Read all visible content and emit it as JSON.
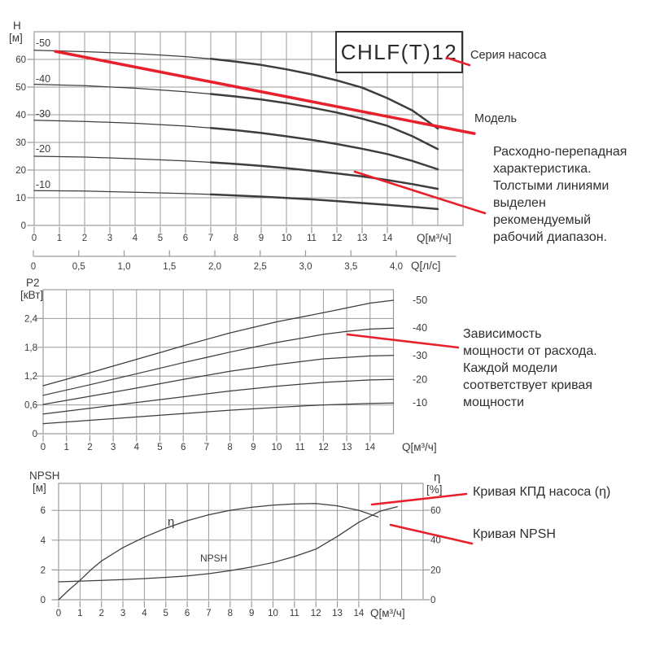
{
  "page": {
    "background": "#ffffff"
  },
  "model_box": {
    "label": "CHLF(T)12"
  },
  "callouts": {
    "series_label": "Серия насоса",
    "model_label": "Модель",
    "flow_note_lines": [
      "Расходно-перепадная",
      "характеристика.",
      "Толстыми линиями",
      "выделен",
      "рекомендуемый",
      "рабочий диапазон."
    ],
    "power_note_lines": [
      "Зависимость",
      "мощности от расхода.",
      "Каждой модели",
      "соответствует кривая",
      "мощности"
    ],
    "efficiency_label": "Кривая КПД насоса (η)",
    "npsh_label": "Кривая NPSH"
  },
  "colors": {
    "accent_red": "#e8202b",
    "curve": "#3d3d3d",
    "grid": "#9b9b9b",
    "text": "#333333"
  },
  "chart_data": [
    {
      "id": "head-vs-flow",
      "type": "line",
      "y_axis": {
        "title": "H",
        "unit": "[м]",
        "tick_labels": [
          "0",
          "10",
          "20",
          "30",
          "40",
          "50",
          "60"
        ],
        "tick_values": [
          0,
          10,
          20,
          30,
          40,
          50,
          60
        ],
        "range": [
          0,
          70
        ]
      },
      "x_axis": {
        "title": "Q[м³/ч]",
        "tick_labels": [
          "0",
          "1",
          "2",
          "3",
          "4",
          "5",
          "6",
          "7",
          "8",
          "9",
          "10",
          "11",
          "12",
          "13",
          "14"
        ],
        "tick_values": [
          0,
          1,
          2,
          3,
          4,
          5,
          6,
          7,
          8,
          9,
          10,
          11,
          12,
          13,
          14
        ],
        "range": [
          0,
          17
        ]
      },
      "x_axis_secondary": {
        "title": "Q[л/с]",
        "tick_labels": [
          "0",
          "0,5",
          "1,0",
          "1,5",
          "2,0",
          "2,5",
          "3,0",
          "3,5",
          "4,0"
        ],
        "tick_values": [
          0,
          0.5,
          1,
          1.5,
          2,
          2.5,
          3,
          3.5,
          4
        ],
        "range": [
          0,
          4.65
        ]
      },
      "series": [
        {
          "name": "-50",
          "points": [
            [
              0,
              63.3
            ],
            [
              2,
              62.8
            ],
            [
              4,
              62.1
            ],
            [
              5,
              61.6
            ],
            [
              6,
              61
            ],
            [
              7,
              60.2
            ],
            [
              8,
              59.2
            ],
            [
              9,
              58
            ],
            [
              10,
              56.4
            ],
            [
              11,
              54.6
            ],
            [
              12,
              52.4
            ],
            [
              13,
              49.8
            ],
            [
              14,
              46
            ],
            [
              15,
              41.5
            ],
            [
              16,
              35
            ]
          ],
          "bold_from": 7
        },
        {
          "name": "-40",
          "points": [
            [
              0,
              51
            ],
            [
              2,
              50.5
            ],
            [
              4,
              49.6
            ],
            [
              6,
              48.3
            ],
            [
              7,
              47.5
            ],
            [
              8,
              46.6
            ],
            [
              9,
              45.5
            ],
            [
              10,
              44.2
            ],
            [
              11,
              42.6
            ],
            [
              12,
              40.8
            ],
            [
              13,
              38.6
            ],
            [
              14,
              36
            ],
            [
              15,
              32.2
            ],
            [
              16,
              27.6
            ]
          ],
          "bold_from": 7
        },
        {
          "name": "-30",
          "points": [
            [
              0,
              38
            ],
            [
              2,
              37.6
            ],
            [
              4,
              36.9
            ],
            [
              6,
              35.9
            ],
            [
              7,
              35.2
            ],
            [
              8,
              34.4
            ],
            [
              9,
              33.4
            ],
            [
              10,
              32.2
            ],
            [
              11,
              30.9
            ],
            [
              12,
              29.4
            ],
            [
              13,
              27.7
            ],
            [
              14,
              25.8
            ],
            [
              15,
              23.3
            ],
            [
              16,
              20.3
            ]
          ],
          "bold_from": 7
        },
        {
          "name": "-20",
          "points": [
            [
              0,
              25
            ],
            [
              2,
              24.7
            ],
            [
              4,
              24.1
            ],
            [
              6,
              23.3
            ],
            [
              7,
              22.8
            ],
            [
              8,
              22.2
            ],
            [
              9,
              21.5
            ],
            [
              10,
              20.7
            ],
            [
              11,
              19.8
            ],
            [
              12,
              18.8
            ],
            [
              13,
              17.7
            ],
            [
              14,
              16.4
            ],
            [
              15,
              14.9
            ],
            [
              16,
              13.2
            ]
          ],
          "bold_from": 7
        },
        {
          "name": "-10",
          "points": [
            [
              0,
              12.6
            ],
            [
              2,
              12.4
            ],
            [
              4,
              12
            ],
            [
              6,
              11.5
            ],
            [
              7,
              11.2
            ],
            [
              8,
              10.8
            ],
            [
              9,
              10.4
            ],
            [
              10,
              9.9
            ],
            [
              11,
              9.4
            ],
            [
              12,
              8.8
            ],
            [
              13,
              8.1
            ],
            [
              14,
              7.4
            ],
            [
              15,
              6.7
            ],
            [
              16,
              5.9
            ]
          ],
          "bold_from": 7
        }
      ],
      "highlight_model_line": {
        "points": [
          [
            0.84,
            62.9
          ],
          [
            17.45,
            33.2
          ]
        ]
      }
    },
    {
      "id": "power-vs-flow",
      "type": "line",
      "y_axis": {
        "title": "P2",
        "unit": "[кВт]",
        "tick_labels": [
          "0",
          "0,6",
          "1,2",
          "1,8",
          "2,4"
        ],
        "tick_values": [
          0,
          0.6,
          1.2,
          1.8,
          2.4
        ],
        "range": [
          0,
          3.0
        ]
      },
      "x_axis": {
        "title": "Q[м³/ч]",
        "tick_labels": [
          "0",
          "1",
          "2",
          "3",
          "4",
          "5",
          "6",
          "7",
          "8",
          "9",
          "10",
          "11",
          "12",
          "13",
          "14"
        ],
        "tick_values": [
          0,
          1,
          2,
          3,
          4,
          5,
          6,
          7,
          8,
          9,
          10,
          11,
          12,
          13,
          14
        ],
        "range": [
          0,
          15
        ]
      },
      "series": [
        {
          "name": "-50",
          "points": [
            [
              0,
              1.0
            ],
            [
              2,
              1.27
            ],
            [
              4,
              1.55
            ],
            [
              6,
              1.83
            ],
            [
              8,
              2.1
            ],
            [
              10,
              2.33
            ],
            [
              12,
              2.52
            ],
            [
              13,
              2.62
            ],
            [
              14,
              2.72
            ],
            [
              15,
              2.78
            ]
          ]
        },
        {
          "name": "-40",
          "points": [
            [
              0,
              0.8
            ],
            [
              2,
              1.02
            ],
            [
              4,
              1.25
            ],
            [
              6,
              1.48
            ],
            [
              8,
              1.7
            ],
            [
              10,
              1.9
            ],
            [
              12,
              2.07
            ],
            [
              13,
              2.13
            ],
            [
              14,
              2.18
            ],
            [
              15,
              2.2
            ]
          ]
        },
        {
          "name": "-30",
          "points": [
            [
              0,
              0.61
            ],
            [
              2,
              0.78
            ],
            [
              4,
              0.95
            ],
            [
              6,
              1.13
            ],
            [
              8,
              1.3
            ],
            [
              10,
              1.44
            ],
            [
              12,
              1.56
            ],
            [
              14,
              1.62
            ],
            [
              15,
              1.63
            ]
          ]
        },
        {
          "name": "-20",
          "points": [
            [
              0,
              0.41
            ],
            [
              2,
              0.53
            ],
            [
              4,
              0.65
            ],
            [
              6,
              0.77
            ],
            [
              8,
              0.89
            ],
            [
              10,
              0.99
            ],
            [
              12,
              1.07
            ],
            [
              14,
              1.12
            ],
            [
              15,
              1.13
            ]
          ]
        },
        {
          "name": "-10",
          "points": [
            [
              0,
              0.21
            ],
            [
              2,
              0.28
            ],
            [
              4,
              0.35
            ],
            [
              6,
              0.42
            ],
            [
              8,
              0.49
            ],
            [
              10,
              0.55
            ],
            [
              12,
              0.6
            ],
            [
              14,
              0.63
            ],
            [
              15,
              0.64
            ]
          ]
        }
      ]
    },
    {
      "id": "npsh-and-efficiency",
      "type": "line",
      "y_axis_left": {
        "title": "NPSH",
        "unit": "[м]",
        "tick_labels": [
          "0",
          "2",
          "4",
          "6"
        ],
        "tick_values": [
          0,
          2,
          4,
          6
        ],
        "range": [
          0,
          7.8
        ]
      },
      "y_axis_right": {
        "title": "η",
        "unit": "[%]",
        "tick_labels": [
          "0",
          "20",
          "40",
          "60"
        ],
        "tick_values": [
          0,
          20,
          40,
          60
        ],
        "range": [
          0,
          78
        ]
      },
      "x_axis": {
        "title": "Q[м³/ч]",
        "tick_labels": [
          "0",
          "1",
          "2",
          "3",
          "4",
          "5",
          "6",
          "7",
          "8",
          "9",
          "10",
          "11",
          "12",
          "13",
          "14"
        ],
        "tick_values": [
          0,
          1,
          2,
          3,
          4,
          5,
          6,
          7,
          8,
          9,
          10,
          11,
          12,
          13,
          14
        ],
        "range": [
          0,
          17
        ]
      },
      "series": [
        {
          "name": "η",
          "axis": "right",
          "points": [
            [
              0,
              0
            ],
            [
              0.5,
              6.8
            ],
            [
              1,
              13
            ],
            [
              1.5,
              20
            ],
            [
              2,
              26
            ],
            [
              3,
              35
            ],
            [
              4,
              42
            ],
            [
              5,
              48
            ],
            [
              6,
              53
            ],
            [
              7,
              57
            ],
            [
              8,
              60
            ],
            [
              9,
              62
            ],
            [
              10,
              63.5
            ],
            [
              11,
              64.3
            ],
            [
              12,
              64.5
            ],
            [
              13,
              63
            ],
            [
              14,
              60
            ],
            [
              14.9,
              55.5
            ]
          ]
        },
        {
          "name": "NPSH",
          "axis": "left",
          "points": [
            [
              0,
              1.2
            ],
            [
              1,
              1.25
            ],
            [
              2,
              1.3
            ],
            [
              3,
              1.35
            ],
            [
              4,
              1.42
            ],
            [
              5,
              1.5
            ],
            [
              6,
              1.6
            ],
            [
              7,
              1.75
            ],
            [
              8,
              1.95
            ],
            [
              9,
              2.2
            ],
            [
              10,
              2.5
            ],
            [
              11,
              2.9
            ],
            [
              12,
              3.4
            ],
            [
              13,
              4.25
            ],
            [
              14,
              5.2
            ],
            [
              15,
              5.95
            ],
            [
              15.8,
              6.25
            ]
          ]
        }
      ]
    }
  ]
}
